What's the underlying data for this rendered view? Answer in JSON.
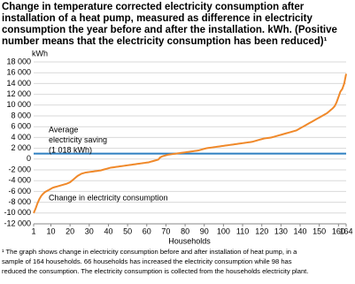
{
  "chart_data": {
    "type": "line",
    "title": [
      "Change in temperature corrected electricity consumption after",
      "installation of a heat pump, measured as difference in electricity",
      "consumption the year before and after the installation. kWh. (Positive",
      "number means that the electricity consumption has been reduced)¹"
    ],
    "y_unit": "kWh",
    "x_label": "Households",
    "average_value": 1018,
    "average_color": "#2e7fc1",
    "average_annotation": [
      "Average",
      "electricity saving",
      "(1 018 kWh)"
    ],
    "footnote": [
      "¹ The graph shows change in electricity consumption before and after installation of heat pump, in a",
      "sample of 164 households. 66 households has increased the electricity consumption while 98 has",
      "reduced the consumption. The electricity consumption is collected from the households electricity plant."
    ],
    "grid": true,
    "xlim": [
      1,
      164
    ],
    "xticks": [
      1,
      10,
      20,
      30,
      40,
      50,
      60,
      70,
      80,
      90,
      100,
      110,
      120,
      130,
      140,
      150,
      160,
      164
    ],
    "ylim": [
      -12000,
      18000
    ],
    "yticks": [
      {
        "value": -12000,
        "label": "-12 000"
      },
      {
        "value": -10000,
        "label": "-10 000"
      },
      {
        "value": -8000,
        "label": "-8 000"
      },
      {
        "value": -6000,
        "label": "-6 000"
      },
      {
        "value": -4000,
        "label": "-4 000"
      },
      {
        "value": -2000,
        "label": "-2 000"
      },
      0,
      {
        "value": 2000,
        "label": "2 000"
      },
      {
        "value": 4000,
        "label": "4 000"
      },
      {
        "value": 6000,
        "label": "6 000"
      },
      {
        "value": 8000,
        "label": "8 000"
      },
      {
        "value": 10000,
        "label": "10 000"
      },
      {
        "value": 12000,
        "label": "12 000"
      },
      {
        "value": 14000,
        "label": "14 000"
      },
      {
        "value": 16000,
        "label": "16 000"
      },
      {
        "value": 18000,
        "label": "18 000"
      }
    ],
    "x": [
      1,
      2,
      3,
      4,
      5,
      6,
      7,
      8,
      9,
      10,
      11,
      12,
      13,
      14,
      15,
      16,
      17,
      18,
      19,
      20,
      21,
      22,
      23,
      24,
      25,
      26,
      27,
      28,
      29,
      30,
      31,
      32,
      33,
      34,
      35,
      36,
      37,
      38,
      39,
      40,
      41,
      42,
      43,
      44,
      45,
      46,
      47,
      48,
      49,
      50,
      51,
      52,
      53,
      54,
      55,
      56,
      57,
      58,
      59,
      60,
      61,
      62,
      63,
      64,
      65,
      66,
      67,
      68,
      69,
      70,
      71,
      72,
      73,
      74,
      75,
      76,
      77,
      78,
      79,
      80,
      81,
      82,
      83,
      84,
      85,
      86,
      87,
      88,
      89,
      90,
      91,
      92,
      93,
      94,
      95,
      96,
      97,
      98,
      99,
      100,
      101,
      102,
      103,
      104,
      105,
      106,
      107,
      108,
      109,
      110,
      111,
      112,
      113,
      114,
      115,
      116,
      117,
      118,
      119,
      120,
      121,
      122,
      123,
      124,
      125,
      126,
      127,
      128,
      129,
      130,
      131,
      132,
      133,
      134,
      135,
      136,
      137,
      138,
      139,
      140,
      141,
      142,
      143,
      144,
      145,
      146,
      147,
      148,
      149,
      150,
      151,
      152,
      153,
      154,
      155,
      156,
      157,
      158,
      159,
      160,
      161,
      162,
      163,
      164
    ],
    "series": [
      {
        "name": "Change in electricity consumption",
        "color": "#f0892a",
        "values": [
          -10000,
          -9200,
          -8200,
          -7400,
          -6800,
          -6400,
          -6100,
          -5900,
          -5700,
          -5500,
          -5300,
          -5200,
          -5100,
          -5000,
          -4900,
          -4800,
          -4700,
          -4600,
          -4450,
          -4300,
          -4000,
          -3700,
          -3400,
          -3100,
          -2900,
          -2700,
          -2600,
          -2500,
          -2450,
          -2400,
          -2350,
          -2300,
          -2250,
          -2200,
          -2150,
          -2100,
          -2000,
          -1900,
          -1800,
          -1700,
          -1600,
          -1550,
          -1500,
          -1450,
          -1400,
          -1350,
          -1300,
          -1250,
          -1200,
          -1150,
          -1100,
          -1050,
          -1000,
          -950,
          -900,
          -850,
          -800,
          -750,
          -700,
          -650,
          -600,
          -500,
          -400,
          -300,
          -200,
          -100,
          300,
          500,
          600,
          700,
          800,
          850,
          900,
          950,
          1000,
          1050,
          1100,
          1150,
          1200,
          1250,
          1300,
          1350,
          1400,
          1450,
          1500,
          1550,
          1600,
          1700,
          1800,
          1900,
          2000,
          2050,
          2100,
          2150,
          2200,
          2250,
          2300,
          2350,
          2400,
          2450,
          2500,
          2550,
          2600,
          2650,
          2700,
          2750,
          2800,
          2850,
          2900,
          2950,
          3000,
          3050,
          3100,
          3150,
          3200,
          3300,
          3400,
          3500,
          3600,
          3700,
          3800,
          3850,
          3900,
          3950,
          4000,
          4100,
          4200,
          4300,
          4400,
          4500,
          4600,
          4700,
          4800,
          4900,
          5000,
          5100,
          5200,
          5300,
          5500,
          5700,
          5900,
          6100,
          6300,
          6500,
          6700,
          6900,
          7100,
          7300,
          7500,
          7700,
          7900,
          8100,
          8300,
          8500,
          8800,
          9100,
          9400,
          9800,
          10500,
          11500,
          12500,
          13000,
          14000,
          15800
        ]
      }
    ]
  }
}
